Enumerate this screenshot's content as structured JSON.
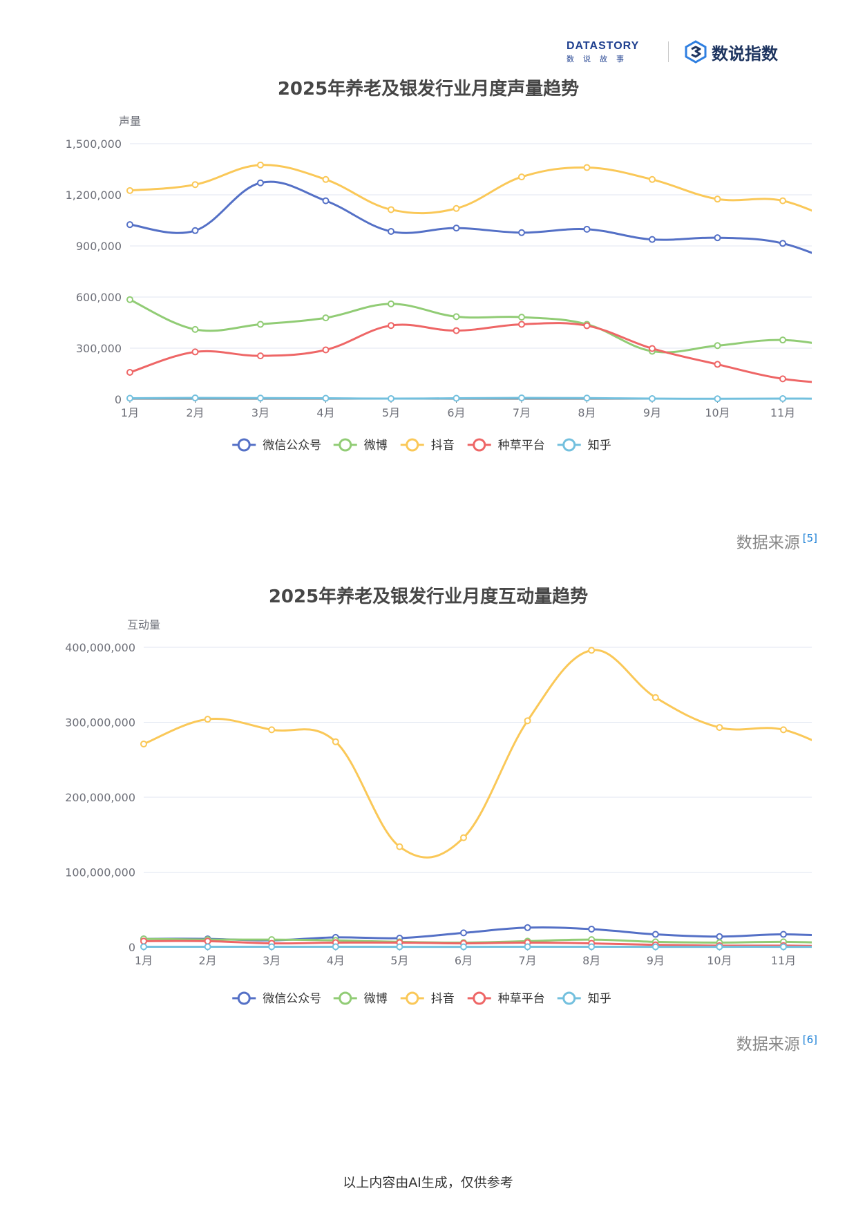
{
  "header": {
    "brand_word": "DATASTORY",
    "brand_sub": "数说故事",
    "product_name": "数说指数"
  },
  "charts": [
    {
      "chart_data": {
        "type": "line",
        "title": "2025年养老及银发行业月度声量趋势",
        "ylabel": "声量",
        "xlabel": "",
        "categories": [
          "1月",
          "2月",
          "3月",
          "4月",
          "5月",
          "6月",
          "7月",
          "8月",
          "9月",
          "10月",
          "11月"
        ],
        "ylim": [
          0,
          1500000
        ],
        "yticks": [
          "1,500,000",
          "1,200,000",
          "900,000",
          "600,000",
          "300,000",
          "0"
        ],
        "grid": true,
        "legend_position": "bottom",
        "series": [
          {
            "name": "微信公众号",
            "color": "#5470c6",
            "values": [
              1025000,
              990000,
              1270000,
              1165000,
              985000,
              1005000,
              978000,
              998000,
              938000,
              948000,
              915000
            ],
            "tail": 770000
          },
          {
            "name": "微博",
            "color": "#91cc75",
            "values": [
              585000,
              410000,
              440000,
              478000,
              560000,
              485000,
              482000,
              440000,
              282000,
              315000,
              348000
            ],
            "tail": 295000
          },
          {
            "name": "抖音",
            "color": "#fac858",
            "values": [
              1225000,
              1260000,
              1375000,
              1290000,
              1113000,
              1120000,
              1305000,
              1360000,
              1290000,
              1175000,
              1165000
            ],
            "tail": 1010000
          },
          {
            "name": "种草平台",
            "color": "#ee6666",
            "values": [
              158000,
              278000,
              255000,
              290000,
              433000,
              403000,
              440000,
              432000,
              298000,
              205000,
              120000
            ],
            "tail": 88000
          },
          {
            "name": "知乎",
            "color": "#73c0de",
            "values": [
              6000,
              8000,
              7000,
              6000,
              4000,
              6000,
              8000,
              7000,
              4000,
              3000,
              4000
            ],
            "tail": 3000
          }
        ]
      },
      "source_label": "数据来源",
      "source_ref": "[5]"
    },
    {
      "chart_data": {
        "type": "line",
        "title": "2025年养老及银发行业月度互动量趋势",
        "ylabel": "互动量",
        "xlabel": "",
        "categories": [
          "1月",
          "2月",
          "3月",
          "4月",
          "5月",
          "6月",
          "7月",
          "8月",
          "9月",
          "10月",
          "11月"
        ],
        "ylim": [
          0,
          400000000
        ],
        "yticks": [
          "400,000,000",
          "300,000,000",
          "200,000,000",
          "100,000,000",
          "0"
        ],
        "grid": true,
        "legend_position": "bottom",
        "series": [
          {
            "name": "微信公众号",
            "color": "#5470c6",
            "values": [
              11000000,
              11000000,
              9000000,
              13000000,
              12000000,
              19000000,
              26000000,
              24000000,
              17000000,
              14000000,
              17000000
            ],
            "tail": 14000000
          },
          {
            "name": "微博",
            "color": "#91cc75",
            "values": [
              11000000,
              10000000,
              10000000,
              9000000,
              7000000,
              6000000,
              8000000,
              10000000,
              7000000,
              6000000,
              7000000
            ],
            "tail": 5000000
          },
          {
            "name": "抖音",
            "color": "#fac858",
            "values": [
              271000000,
              304000000,
              290000000,
              274000000,
              134000000,
              146000000,
              302000000,
              396000000,
              333000000,
              293000000,
              290000000
            ],
            "tail": 253000000
          },
          {
            "name": "种草平台",
            "color": "#ee6666",
            "values": [
              8000000,
              8000000,
              5000000,
              6000000,
              6000000,
              5000000,
              6000000,
              5000000,
              3000000,
              2000000,
              2000000
            ],
            "tail": 1000000
          },
          {
            "name": "知乎",
            "color": "#73c0de",
            "values": [
              500000,
              500000,
              500000,
              500000,
              400000,
              400000,
              500000,
              500000,
              400000,
              400000,
              400000
            ],
            "tail": 300000
          }
        ]
      },
      "source_label": "数据来源",
      "source_ref": "[6]"
    }
  ],
  "footer": {
    "note": "以上内容由AI生成，仅供参考"
  }
}
